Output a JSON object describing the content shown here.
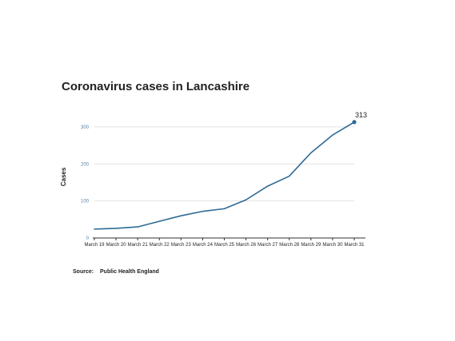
{
  "colors": {
    "line": "#2e6a94",
    "grid": "#e3e3e3",
    "tick_text": "#5a7fa0",
    "axis": "#333333"
  },
  "chart_data": {
    "type": "line",
    "title": "Coronavirus cases in Lancashire",
    "xlabel": "",
    "ylabel": "Cases",
    "ylim": [
      0,
      330
    ],
    "yticks": [
      0,
      100,
      200,
      300
    ],
    "grid": true,
    "categories": [
      "March 19",
      "March 20",
      "March 21",
      "March 22",
      "March 23",
      "March 24",
      "March 25",
      "March 26",
      "March 27",
      "March 28",
      "March 29",
      "March 30",
      "March 31"
    ],
    "series": [
      {
        "values": [
          24,
          26,
          30,
          45,
          60,
          72,
          79,
          103,
          140,
          167,
          230,
          278,
          313
        ]
      }
    ],
    "annotations": [
      {
        "category": "March 31",
        "text": "313"
      }
    ]
  },
  "source": {
    "label": "Source:",
    "text": "Public Health England"
  }
}
